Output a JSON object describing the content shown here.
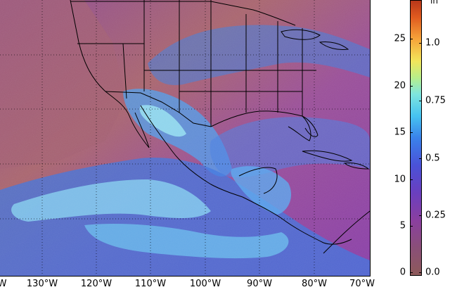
{
  "map": {
    "longitude_labels": [
      "W",
      "130°W",
      "120°W",
      "110°W",
      "100°W",
      "90°W",
      "80°W",
      "70°W"
    ],
    "gridline_style": "dotted",
    "region": "North America / Central America / Eastern Pacific"
  },
  "colorbar": {
    "left_ticks": [
      "0",
      "5",
      "10",
      "15",
      "20",
      "25"
    ],
    "right_ticks": [
      "0.0",
      "0.25",
      "0.5",
      "0.75",
      "1.0"
    ],
    "unit_label": "in",
    "colors": [
      "#8e5a5a",
      "#8a3fa0",
      "#4a52d8",
      "#46c3f0",
      "#b8ef8a",
      "#f2e55a",
      "#e05a1f",
      "#b8371a"
    ]
  },
  "colors": {
    "land_background": "#a6607a",
    "ocean_background": "#9a4e9c",
    "moisture_plume": "#4a8fe8",
    "high_moisture": "#8ee6ef",
    "outlines": "#000000"
  }
}
